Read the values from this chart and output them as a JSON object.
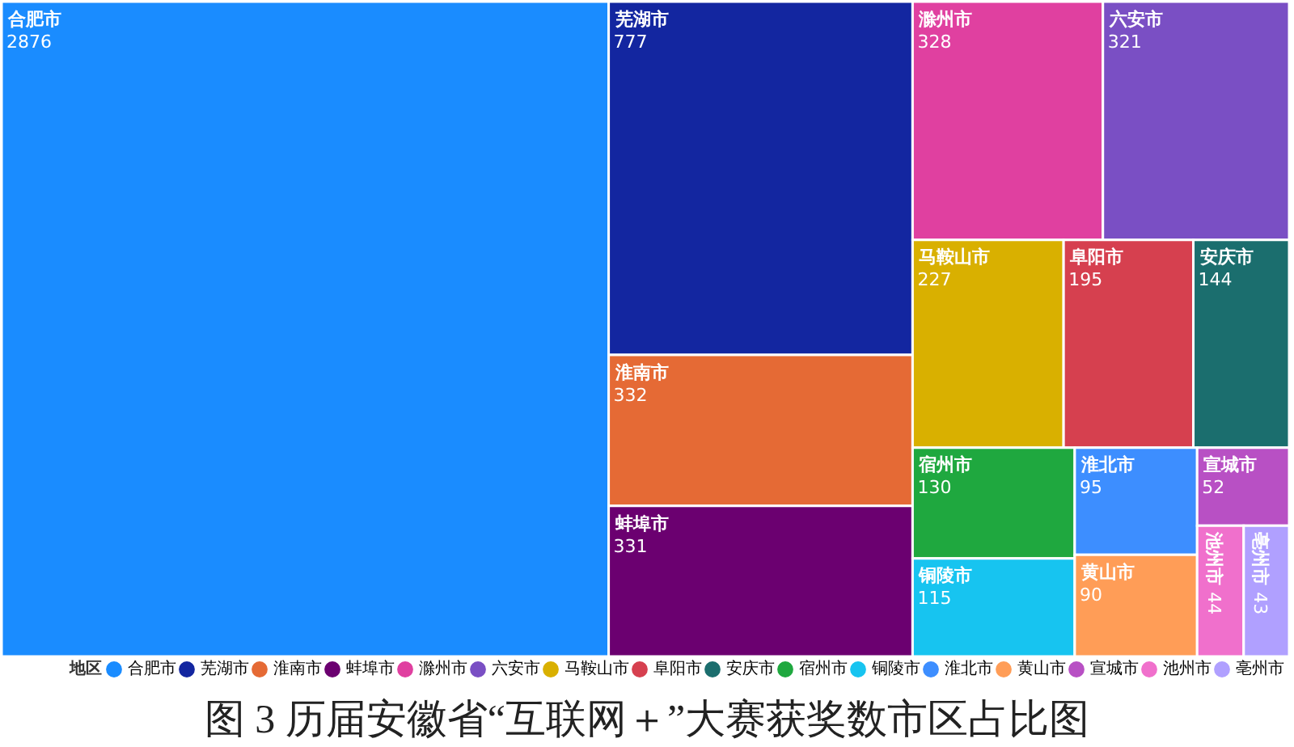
{
  "chart_data": {
    "type": "other",
    "title": "图 3  历届安徽省“互联网＋”大赛获奖数市区占比图",
    "legend_title": "地区",
    "legend": "bottom",
    "data_labels": true,
    "series": [
      {
        "name": "合肥市",
        "color": "#1a8cff",
        "values": [
          2876
        ]
      },
      {
        "name": "芜湖市",
        "color": "#1326a0",
        "values": [
          777
        ]
      },
      {
        "name": "淮南市",
        "color": "#e56a35",
        "values": [
          332
        ]
      },
      {
        "name": "蚌埠市",
        "color": "#6b0070",
        "values": [
          331
        ]
      },
      {
        "name": "滁州市",
        "color": "#e040a0",
        "values": [
          328
        ]
      },
      {
        "name": "六安市",
        "color": "#7a4fc4",
        "values": [
          321
        ]
      },
      {
        "name": "马鞍山市",
        "color": "#d9b000",
        "values": [
          227
        ]
      },
      {
        "name": "阜阳市",
        "color": "#d6404f",
        "values": [
          195
        ]
      },
      {
        "name": "安庆市",
        "color": "#1b6e6e",
        "values": [
          144
        ]
      },
      {
        "name": "宿州市",
        "color": "#1fa83f",
        "values": [
          130
        ]
      },
      {
        "name": "铜陵市",
        "color": "#17c4f0",
        "values": [
          115
        ]
      },
      {
        "name": "淮北市",
        "color": "#3d8eff",
        "values": [
          95
        ]
      },
      {
        "name": "黄山市",
        "color": "#ff9d57",
        "values": [
          90
        ]
      },
      {
        "name": "宣城市",
        "color": "#b850c4",
        "values": [
          52
        ]
      },
      {
        "name": "池州市",
        "color": "#f070cc",
        "values": [
          44
        ]
      },
      {
        "name": "亳州市",
        "color": "#b0a0ff",
        "values": [
          43
        ]
      }
    ]
  }
}
